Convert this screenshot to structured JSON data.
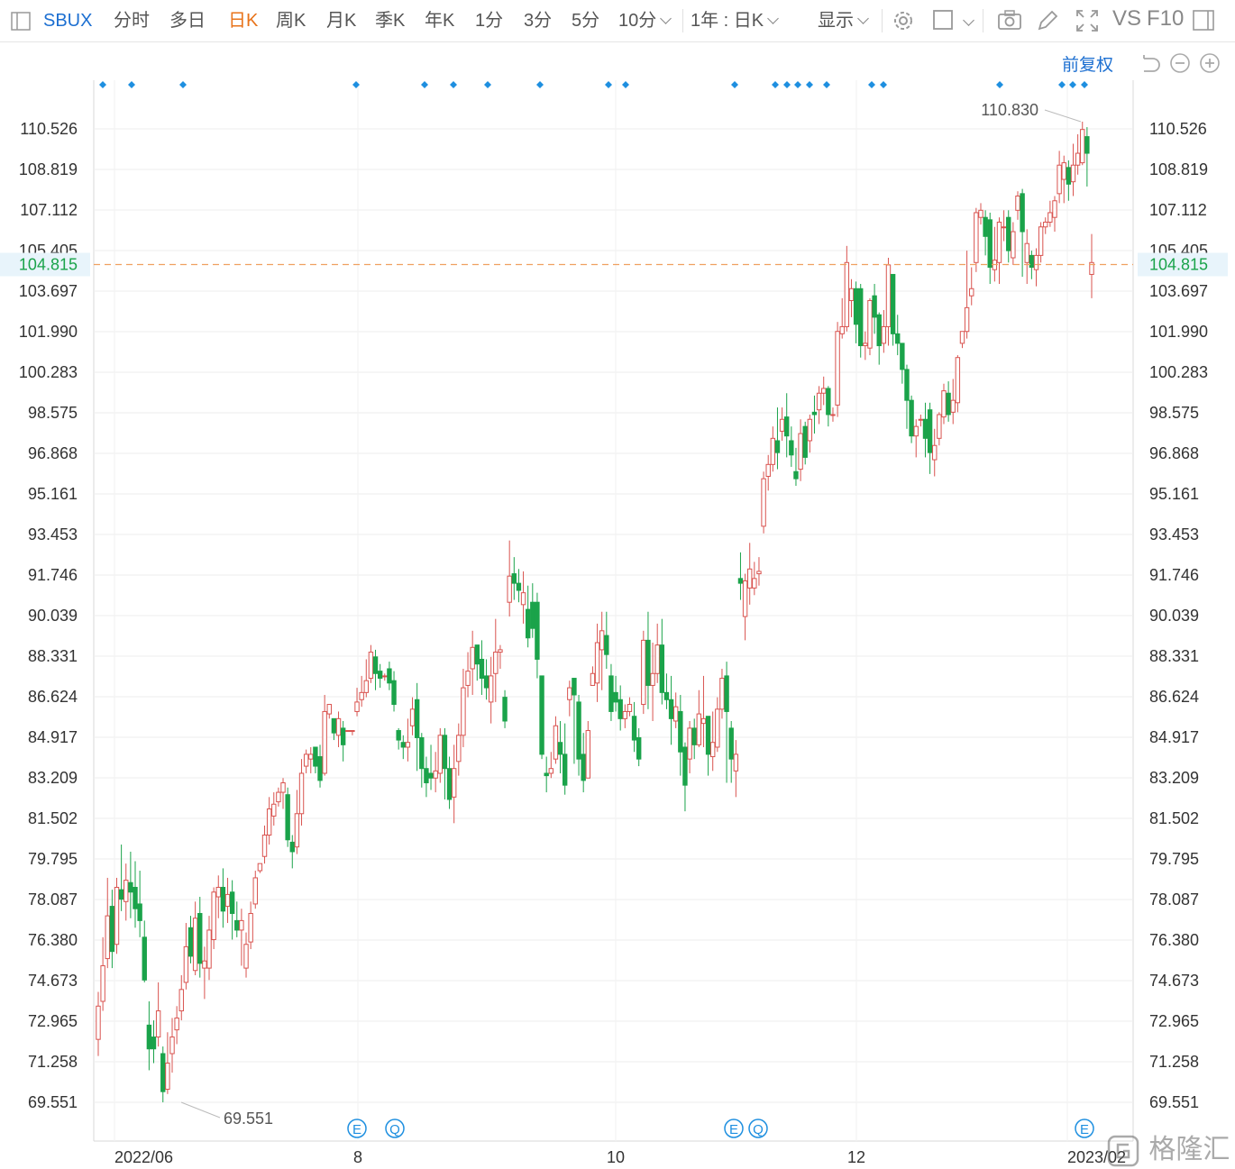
{
  "toolbar": {
    "symbol": "SBUX",
    "tabs": [
      "分时",
      "多日",
      "日K",
      "周K",
      "月K",
      "季K",
      "年K",
      "1分",
      "3分",
      "5分"
    ],
    "active_tab": "日K",
    "period_dropdown": "10分",
    "range_dropdown": "1年 : 日K",
    "display_dropdown": "显示",
    "vs_label": "VS",
    "f10_label": "F10"
  },
  "controls": {
    "adjust_label": "前复权"
  },
  "watermark": "格隆汇",
  "colors": {
    "up": "#d9534f",
    "down": "#1aa34a",
    "current_line": "#f0a060",
    "current_label_bg": "#e8f4fb",
    "current_label_text": "#1aa34a",
    "marker": "#1e8fe0"
  },
  "chart_data": {
    "type": "candlestick",
    "symbol": "SBUX",
    "period": "日K",
    "y_ticks": [
      "110.526",
      "108.819",
      "107.112",
      "105.405",
      "103.697",
      "101.990",
      "100.283",
      "98.575",
      "96.868",
      "95.161",
      "93.453",
      "91.746",
      "90.039",
      "88.331",
      "86.624",
      "84.917",
      "83.209",
      "81.502",
      "79.795",
      "78.087",
      "76.380",
      "74.673",
      "72.965",
      "71.258",
      "69.551"
    ],
    "ylim": [
      69.551,
      110.526
    ],
    "current_price": "104.815",
    "high_label": "110.830",
    "low_label": "69.551",
    "x_labels": [
      "2022/06",
      "8",
      "10",
      "12",
      "2023/02"
    ],
    "event_markers": [
      "E",
      "Q",
      "E",
      "Q",
      "E"
    ],
    "candles": [
      [
        72.2,
        73.6,
        71.5,
        74.2
      ],
      [
        73.8,
        75.3,
        73.4,
        76.5
      ],
      [
        75.6,
        77.4,
        75.2,
        79.0
      ],
      [
        77.8,
        75.9,
        75.2,
        78.5
      ],
      [
        76.2,
        78.6,
        75.8,
        79.0
      ],
      [
        78.5,
        78.1,
        77.6,
        80.4
      ],
      [
        78.0,
        78.9,
        77.2,
        79.6
      ],
      [
        78.8,
        78.4,
        77.3,
        80.1
      ],
      [
        78.6,
        77.7,
        76.9,
        79.7
      ],
      [
        77.9,
        77.2,
        76.5,
        79.3
      ],
      [
        76.5,
        74.7,
        74.6,
        77.2
      ],
      [
        72.8,
        71.8,
        70.9,
        73.8
      ],
      [
        72.3,
        71.8,
        71.2,
        73.0
      ],
      [
        72.3,
        73.4,
        71.9,
        74.6
      ],
      [
        71.6,
        70.0,
        69.55,
        71.9
      ],
      [
        70.1,
        71.2,
        69.9,
        72.5
      ],
      [
        71.6,
        72.3,
        70.8,
        73.1
      ],
      [
        72.6,
        73.1,
        72.0,
        73.6
      ],
      [
        73.4,
        74.3,
        73.0,
        74.9
      ],
      [
        74.6,
        76.1,
        74.3,
        77.1
      ],
      [
        76.9,
        75.7,
        75.4,
        77.4
      ],
      [
        75.1,
        77.3,
        74.9,
        78.0
      ],
      [
        77.5,
        75.4,
        74.8,
        78.2
      ],
      [
        75.2,
        75.5,
        73.9,
        76.1
      ],
      [
        75.2,
        76.8,
        74.7,
        77.4
      ],
      [
        76.4,
        78.4,
        76.0,
        78.6
      ],
      [
        78.2,
        78.6,
        77.3,
        79.1
      ],
      [
        78.6,
        77.6,
        76.9,
        79.4
      ],
      [
        77.8,
        78.3,
        77.1,
        79.0
      ],
      [
        78.4,
        77.5,
        76.4,
        78.9
      ],
      [
        77.2,
        76.8,
        76.5,
        78.0
      ],
      [
        76.8,
        77.2,
        75.3,
        77.7
      ],
      [
        75.2,
        76.2,
        74.8,
        76.7
      ],
      [
        76.3,
        77.5,
        76.0,
        78.0
      ],
      [
        77.9,
        79.0,
        77.7,
        79.3
      ],
      [
        79.3,
        79.6,
        79.2,
        79.6
      ],
      [
        79.9,
        80.8,
        79.6,
        81.2
      ],
      [
        80.8,
        81.9,
        80.4,
        82.4
      ],
      [
        81.6,
        82.1,
        81.2,
        82.6
      ],
      [
        82.2,
        82.6,
        82.0,
        82.8
      ],
      [
        82.6,
        83.0,
        81.9,
        83.2
      ],
      [
        82.5,
        80.6,
        80.3,
        82.8
      ],
      [
        80.5,
        80.1,
        79.4,
        80.8
      ],
      [
        80.3,
        81.7,
        80.0,
        82.7
      ],
      [
        81.7,
        83.4,
        81.2,
        84.0
      ],
      [
        83.7,
        84.2,
        83.4,
        84.4
      ],
      [
        84.0,
        84.2,
        83.4,
        84.5
      ],
      [
        84.5,
        83.7,
        83.4,
        84.5
      ],
      [
        84.1,
        83.1,
        82.8,
        84.6
      ],
      [
        83.4,
        86.0,
        83.3,
        86.7
      ],
      [
        85.9,
        86.3,
        85.7,
        86.3
      ],
      [
        85.7,
        85.1,
        84.8,
        85.7
      ],
      [
        85.0,
        85.7,
        84.5,
        86.0
      ],
      [
        85.3,
        84.6,
        83.9,
        85.6
      ],
      [
        85.2,
        85.2,
        85.2,
        85.2
      ],
      [
        85.2,
        85.2,
        85.0,
        85.2
      ],
      [
        86.0,
        86.4,
        85.8,
        87.0
      ],
      [
        86.5,
        86.8,
        86.2,
        87.5
      ],
      [
        86.8,
        87.3,
        86.6,
        88.2
      ],
      [
        87.4,
        88.5,
        87.2,
        88.8
      ],
      [
        88.3,
        87.6,
        86.9,
        88.6
      ],
      [
        87.7,
        87.4,
        87.0,
        88.0
      ],
      [
        87.5,
        87.5,
        87.3,
        87.6
      ],
      [
        87.8,
        87.2,
        86.9,
        88.1
      ],
      [
        87.3,
        86.3,
        86.0,
        87.7
      ],
      [
        85.2,
        84.8,
        84.4,
        85.3
      ],
      [
        84.7,
        84.5,
        84.0,
        85.0
      ],
      [
        84.5,
        84.7,
        83.9,
        85.7
      ],
      [
        85.4,
        86.1,
        85.0,
        86.6
      ],
      [
        86.5,
        84.9,
        83.5,
        87.2
      ],
      [
        84.9,
        83.6,
        82.8,
        85.1
      ],
      [
        83.6,
        83.0,
        82.4,
        84.1
      ],
      [
        83.4,
        83.2,
        82.7,
        84.6
      ],
      [
        83.2,
        83.5,
        82.6,
        84.3
      ],
      [
        83.4,
        85.0,
        83.0,
        85.3
      ],
      [
        85.0,
        83.6,
        82.3,
        85.3
      ],
      [
        83.6,
        82.3,
        81.9,
        84.1
      ],
      [
        82.4,
        83.6,
        81.3,
        84.6
      ],
      [
        83.9,
        85.0,
        83.3,
        85.5
      ],
      [
        85.0,
        87.0,
        84.5,
        87.8
      ],
      [
        87.1,
        87.7,
        86.6,
        88.5
      ],
      [
        87.8,
        88.7,
        86.7,
        89.4
      ],
      [
        88.8,
        88.0,
        87.3,
        88.8
      ],
      [
        88.2,
        87.4,
        86.7,
        89.0
      ],
      [
        87.5,
        87.0,
        86.5,
        88.2
      ],
      [
        86.4,
        87.5,
        85.5,
        88.3
      ],
      [
        87.6,
        88.5,
        86.4,
        89.9
      ],
      [
        88.5,
        88.6,
        87.8,
        88.8
      ],
      [
        86.6,
        85.6,
        85.3,
        86.9
      ],
      [
        90.6,
        91.7,
        90.0,
        93.2
      ],
      [
        91.8,
        91.4,
        90.7,
        92.5
      ],
      [
        91.4,
        91.1,
        90.6,
        92.0
      ],
      [
        90.5,
        91.0,
        89.7,
        91.9
      ],
      [
        90.3,
        89.1,
        88.7,
        91.3
      ],
      [
        90.6,
        89.5,
        89.1,
        91.4
      ],
      [
        90.6,
        88.2,
        87.4,
        91.0
      ],
      [
        87.5,
        84.2,
        84.0,
        87.5
      ],
      [
        83.4,
        83.3,
        82.6,
        84.1
      ],
      [
        83.4,
        83.6,
        83.2,
        84.3
      ],
      [
        84.0,
        85.4,
        83.8,
        85.8
      ],
      [
        84.7,
        84.2,
        83.4,
        85.6
      ],
      [
        84.2,
        82.9,
        82.5,
        85.5
      ],
      [
        86.5,
        87.0,
        85.8,
        87.3
      ],
      [
        87.4,
        86.7,
        83.8,
        87.4
      ],
      [
        86.4,
        84.0,
        83.3,
        86.7
      ],
      [
        84.2,
        83.1,
        82.6,
        85.1
      ],
      [
        83.2,
        85.2,
        83.2,
        85.6
      ],
      [
        87.1,
        87.6,
        87.1,
        87.9
      ],
      [
        87.2,
        88.9,
        86.4,
        89.7
      ],
      [
        88.6,
        89.4,
        86.9,
        90.2
      ],
      [
        89.2,
        88.4,
        87.8,
        90.2
      ],
      [
        87.5,
        86.0,
        85.6,
        88.0
      ],
      [
        86.8,
        86.4,
        86.0,
        87.5
      ],
      [
        86.5,
        85.7,
        85.2,
        87.1
      ],
      [
        85.7,
        86.0,
        85.3,
        86.3
      ],
      [
        86.0,
        86.3,
        85.8,
        86.6
      ],
      [
        85.8,
        84.8,
        84.3,
        86.4
      ],
      [
        84.9,
        84.0,
        83.7,
        85.3
      ],
      [
        86.3,
        89.0,
        85.9,
        89.4
      ],
      [
        89.0,
        87.1,
        86.1,
        90.2
      ],
      [
        87.1,
        87.6,
        85.6,
        88.9
      ],
      [
        87.6,
        88.8,
        87.2,
        89.7
      ],
      [
        88.8,
        86.8,
        86.3,
        89.9
      ],
      [
        86.8,
        86.5,
        86.1,
        87.6
      ],
      [
        86.5,
        85.7,
        84.6,
        87.5
      ],
      [
        85.6,
        86.2,
        85.3,
        86.8
      ],
      [
        86.0,
        84.3,
        83.3,
        86.7
      ],
      [
        84.5,
        82.9,
        81.8,
        84.7
      ],
      [
        84.0,
        85.3,
        83.4,
        85.6
      ],
      [
        85.3,
        84.6,
        84.0,
        85.7
      ],
      [
        84.6,
        85.9,
        84.5,
        86.9
      ],
      [
        85.5,
        85.7,
        84.5,
        87.5
      ],
      [
        85.8,
        84.2,
        83.3,
        85.8
      ],
      [
        84.1,
        84.7,
        83.5,
        86.0
      ],
      [
        84.5,
        86.1,
        84.3,
        86.6
      ],
      [
        86.1,
        87.4,
        85.7,
        87.8
      ],
      [
        87.5,
        86.0,
        83.0,
        88.1
      ],
      [
        85.3,
        84.0,
        83.0,
        85.6
      ],
      [
        83.5,
        84.2,
        82.4,
        84.8
      ],
      [
        91.6,
        91.4,
        90.7,
        92.7
      ],
      [
        90.0,
        91.5,
        89.0,
        91.8
      ],
      [
        91.2,
        92.0,
        90.5,
        93.1
      ],
      [
        91.2,
        91.6,
        90.9,
        92.3
      ],
      [
        91.8,
        91.9,
        91.3,
        92.5
      ],
      [
        93.8,
        95.8,
        93.5,
        96.1
      ],
      [
        95.9,
        96.4,
        95.3,
        96.8
      ],
      [
        96.4,
        97.5,
        96.1,
        98.0
      ],
      [
        97.4,
        96.9,
        96.2,
        98.8
      ],
      [
        97.8,
        98.3,
        97.4,
        98.8
      ],
      [
        98.4,
        97.6,
        96.7,
        99.4
      ],
      [
        97.4,
        96.8,
        96.3,
        98.0
      ],
      [
        96.1,
        95.8,
        95.5,
        97.1
      ],
      [
        96.2,
        97.7,
        95.7,
        98.3
      ],
      [
        98.0,
        96.7,
        96.4,
        98.2
      ],
      [
        97.4,
        98.3,
        96.9,
        98.5
      ],
      [
        98.6,
        98.5,
        97.7,
        99.3
      ],
      [
        98.7,
        99.4,
        98.1,
        99.7
      ],
      [
        99.4,
        99.6,
        98.9,
        100.1
      ],
      [
        99.6,
        98.5,
        98.0,
        99.7
      ],
      [
        98.5,
        98.5,
        98.2,
        98.8
      ],
      [
        98.9,
        102.0,
        98.4,
        102.4
      ],
      [
        101.9,
        102.2,
        101.7,
        103.4
      ],
      [
        102.2,
        104.9,
        102.0,
        105.6
      ],
      [
        103.3,
        103.8,
        102.6,
        104.2
      ],
      [
        103.8,
        102.3,
        101.5,
        104.1
      ],
      [
        103.8,
        101.4,
        100.9,
        104.0
      ],
      [
        101.4,
        101.5,
        100.8,
        102.0
      ],
      [
        101.3,
        103.3,
        101.0,
        103.4
      ],
      [
        103.5,
        102.6,
        101.9,
        104.0
      ],
      [
        102.7,
        101.4,
        100.6,
        102.8
      ],
      [
        101.5,
        102.2,
        101.1,
        102.9
      ],
      [
        102.2,
        104.8,
        101.4,
        105.1
      ],
      [
        104.4,
        101.9,
        101.4,
        104.4
      ],
      [
        101.9,
        101.5,
        101.0,
        102.7
      ],
      [
        101.5,
        100.4,
        99.8,
        101.5
      ],
      [
        100.4,
        99.1,
        97.9,
        100.6
      ],
      [
        99.1,
        97.6,
        97.3,
        99.3
      ],
      [
        97.6,
        98.0,
        96.7,
        98.3
      ],
      [
        98.3,
        98.3,
        98.0,
        98.5
      ],
      [
        98.3,
        97.5,
        96.7,
        99.0
      ],
      [
        98.7,
        96.9,
        96.0,
        99.0
      ],
      [
        96.6,
        97.2,
        95.9,
        97.9
      ],
      [
        97.5,
        98.5,
        97.2,
        98.6
      ],
      [
        98.4,
        99.5,
        98.1,
        99.8
      ],
      [
        99.4,
        98.5,
        98.2,
        99.9
      ],
      [
        98.6,
        99.1,
        98.1,
        100.0
      ],
      [
        99.0,
        100.9,
        98.6,
        101.0
      ],
      [
        101.5,
        102.0,
        101.3,
        102.0
      ],
      [
        102.0,
        103.0,
        101.7,
        105.4
      ],
      [
        103.5,
        103.8,
        103.1,
        104.7
      ],
      [
        104.9,
        107.0,
        104.5,
        107.2
      ],
      [
        106.8,
        107.1,
        106.5,
        107.4
      ],
      [
        106.8,
        106.0,
        105.2,
        107.1
      ],
      [
        106.7,
        104.7,
        104.0,
        107.0
      ],
      [
        104.6,
        105.0,
        104.1,
        106.4
      ],
      [
        104.9,
        106.6,
        104.0,
        106.8
      ],
      [
        106.4,
        106.4,
        105.8,
        107.1
      ],
      [
        106.8,
        105.4,
        104.9,
        107.1
      ],
      [
        105.1,
        106.2,
        104.8,
        106.6
      ],
      [
        107.1,
        107.7,
        106.7,
        107.9
      ],
      [
        107.8,
        106.2,
        104.3,
        108.0
      ],
      [
        104.9,
        105.7,
        104.0,
        106.3
      ],
      [
        105.2,
        104.7,
        104.2,
        105.4
      ],
      [
        104.6,
        105.2,
        103.9,
        105.5
      ],
      [
        105.2,
        106.4,
        104.9,
        106.6
      ],
      [
        106.4,
        106.6,
        106.1,
        106.8
      ],
      [
        106.6,
        107.0,
        106.4,
        107.5
      ],
      [
        106.8,
        107.5,
        106.2,
        107.7
      ],
      [
        107.8,
        109.0,
        107.4,
        109.6
      ],
      [
        108.4,
        109.1,
        107.4,
        109.4
      ],
      [
        108.9,
        108.2,
        107.5,
        109.2
      ],
      [
        108.3,
        109.0,
        107.7,
        109.9
      ],
      [
        109.0,
        109.5,
        108.6,
        110.3
      ],
      [
        109.1,
        110.5,
        109.0,
        110.83
      ],
      [
        110.2,
        109.5,
        108.1,
        110.6
      ],
      [
        104.4,
        104.9,
        103.4,
        106.1
      ]
    ]
  }
}
